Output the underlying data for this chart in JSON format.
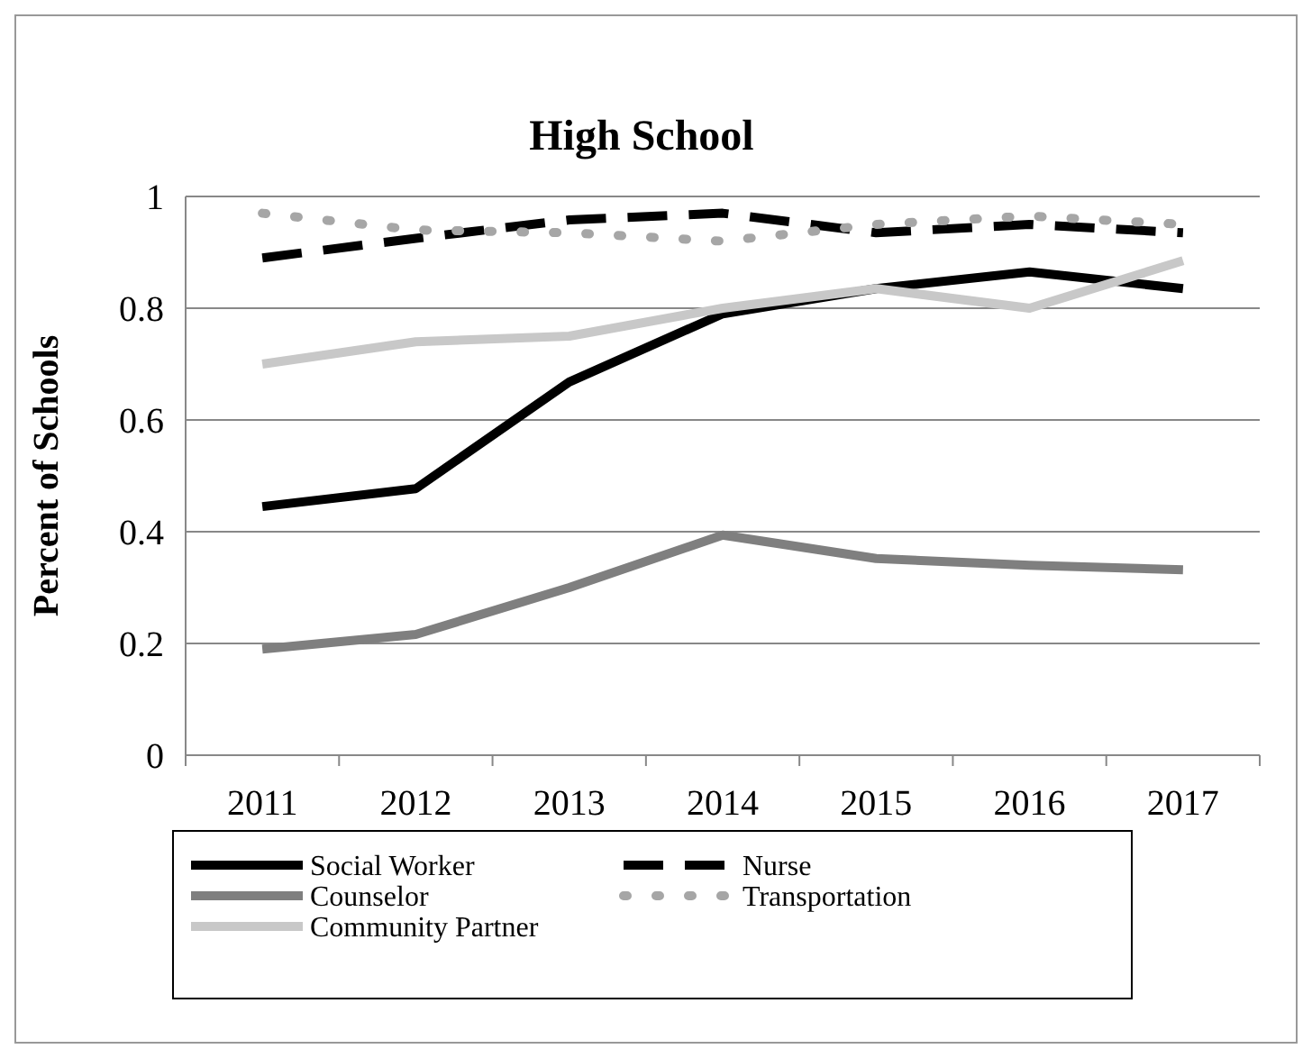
{
  "chart_data": {
    "type": "line",
    "title": "High School",
    "ylabel": "Percent of Schools",
    "categories": [
      "2011",
      "2012",
      "2013",
      "2014",
      "2015",
      "2016",
      "2017"
    ],
    "ylim": [
      0,
      1
    ],
    "yticks": [
      0,
      0.2,
      0.4,
      0.6,
      0.8,
      1
    ],
    "grid": "y",
    "legend": "bottom",
    "marker": "none",
    "series": [
      {
        "name": "Social Worker",
        "color": "#000000",
        "line_style": "solid",
        "values": [
          0.445,
          0.477,
          0.668,
          0.79,
          0.835,
          0.865,
          0.835
        ]
      },
      {
        "name": "Nurse",
        "color": "#000000",
        "line_style": "dashed",
        "values": [
          0.89,
          0.925,
          0.958,
          0.97,
          0.935,
          0.95,
          0.935
        ]
      },
      {
        "name": "Counselor",
        "color": "#7f7f7f",
        "line_style": "solid",
        "values": [
          0.19,
          0.216,
          0.3,
          0.394,
          0.352,
          0.34,
          0.332
        ]
      },
      {
        "name": "Transportation",
        "color": "#a6a6a6",
        "line_style": "dotted",
        "values": [
          0.97,
          0.94,
          0.935,
          0.92,
          0.95,
          0.965,
          0.95
        ]
      },
      {
        "name": "Community Partner",
        "color": "#c8c8c8",
        "line_style": "solid",
        "values": [
          0.7,
          0.74,
          0.75,
          0.8,
          0.835,
          0.8,
          0.885
        ]
      }
    ]
  }
}
